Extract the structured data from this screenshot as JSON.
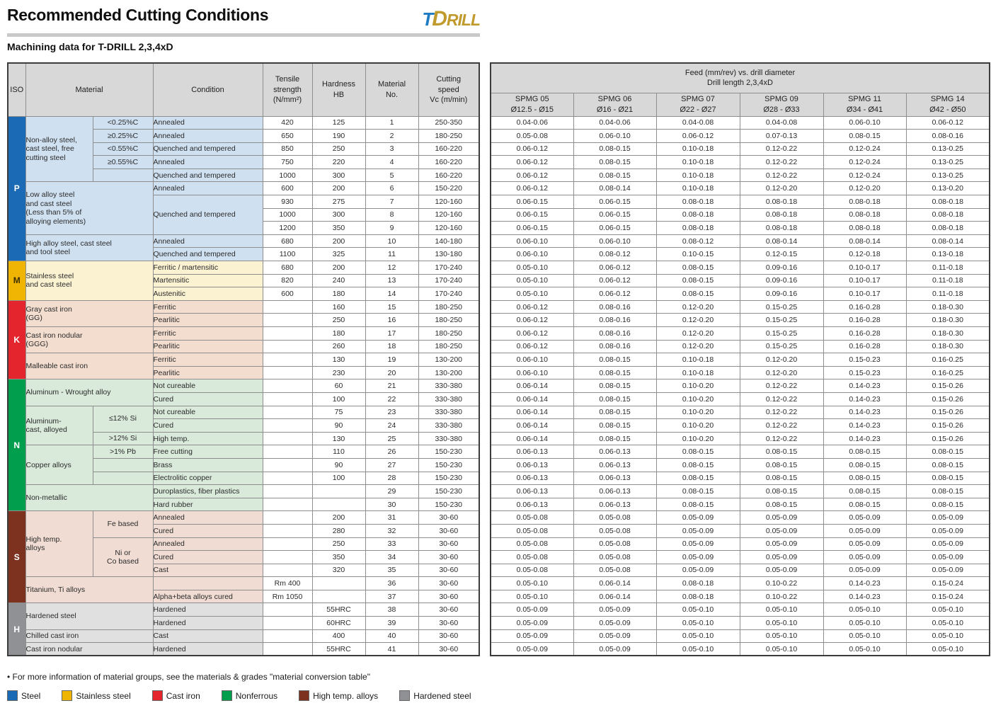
{
  "page": {
    "title": "Recommended Cutting Conditions",
    "subtitle": "Machining data for T-DRILL 2,3,4xD",
    "logo": {
      "t": "T",
      "d": "D",
      "rill": "RILL"
    },
    "footnote": "• For more information of material groups, see the materials & grades \"material conversion table\""
  },
  "legend": [
    {
      "label": "Steel",
      "color": "#1a6ab5"
    },
    {
      "label": "Stainless steel",
      "color": "#f0b502"
    },
    {
      "label": "Cast iron",
      "color": "#e4252e"
    },
    {
      "label": "Nonferrous",
      "color": "#019e4d"
    },
    {
      "label": "High temp. alloys",
      "color": "#7d3220"
    },
    {
      "label": "Hardened steel",
      "color": "#8f9194"
    }
  ],
  "row_groups": {
    "group_ends": [
      4,
      8,
      10,
      13,
      15,
      17,
      19,
      21,
      24,
      27,
      29,
      34,
      36,
      38,
      39,
      40
    ],
    "iso_ends": [
      10,
      13,
      19,
      29,
      36,
      40
    ]
  },
  "left_table": {
    "headers": {
      "iso": "ISO",
      "material": "Material",
      "condition": "Condition",
      "tensile": "Tensile\nstrength\n(N/mm²)",
      "hardness": "Hardness\nHB",
      "material_no": "Material\nNo.",
      "speed": "Cutting\nspeed\nVc (m/min)"
    },
    "iso_groups": [
      {
        "code": "P",
        "row": 0,
        "span": 11,
        "color": "#1a6ab5",
        "text": "#ffffff",
        "tint": "#cfe0f1"
      },
      {
        "code": "M",
        "row": 11,
        "span": 3,
        "color": "#f0b502",
        "text": "#3d3000",
        "tint": "#fbf2d2"
      },
      {
        "code": "K",
        "row": 14,
        "span": 6,
        "color": "#e4252e",
        "text": "#ffffff",
        "tint": "#f2ddcf"
      },
      {
        "code": "N",
        "row": 20,
        "span": 10,
        "color": "#019e4d",
        "text": "#ffffff",
        "tint": "#d9e9da"
      },
      {
        "code": "S",
        "row": 30,
        "span": 7,
        "color": "#7d3220",
        "text": "#ffffff",
        "tint": "#f0dcd3"
      },
      {
        "code": "H",
        "row": 37,
        "span": 4,
        "color": "#8f9194",
        "text": "#ffffff",
        "tint": "#e0e0e0"
      }
    ],
    "materials": [
      {
        "row": 0,
        "span": 5,
        "sub": true,
        "text": "Non-alloy steel,\ncast steel, free\ncutting steel"
      },
      {
        "row": 5,
        "span": 4,
        "sub": false,
        "text": "Low alloy steel\nand cast steel\n(Less than 5% of\nalloying elements)"
      },
      {
        "row": 9,
        "span": 2,
        "sub": false,
        "text": "High alloy steel, cast steel\nand tool steel"
      },
      {
        "row": 11,
        "span": 3,
        "sub": false,
        "text": "Stainless steel\nand cast steel"
      },
      {
        "row": 14,
        "span": 2,
        "sub": false,
        "text": "Gray cast iron\n(GG)"
      },
      {
        "row": 16,
        "span": 2,
        "sub": false,
        "text": "Cast iron nodular\n(GGG)"
      },
      {
        "row": 18,
        "span": 2,
        "sub": false,
        "text": "Malleable cast iron"
      },
      {
        "row": 20,
        "span": 2,
        "sub": false,
        "text": "Aluminum - Wrought alloy"
      },
      {
        "row": 22,
        "span": 3,
        "sub": true,
        "text": "Aluminum-\ncast, alloyed"
      },
      {
        "row": 25,
        "span": 3,
        "sub": true,
        "text": "Copper alloys"
      },
      {
        "row": 28,
        "span": 2,
        "sub": false,
        "text": "Non-metallic"
      },
      {
        "row": 30,
        "span": 5,
        "sub": true,
        "text": "High temp.\nalloys"
      },
      {
        "row": 35,
        "span": 2,
        "sub": false,
        "text": "Titanium, Ti alloys"
      },
      {
        "row": 37,
        "span": 2,
        "sub": false,
        "text": "Hardened steel"
      },
      {
        "row": 39,
        "span": 1,
        "sub": false,
        "text": "Chilled cast iron"
      },
      {
        "row": 40,
        "span": 1,
        "sub": false,
        "text": "Cast iron nodular"
      }
    ],
    "subs": [
      {
        "row": 0,
        "span": 1,
        "text": "<0.25%C"
      },
      {
        "row": 1,
        "span": 1,
        "text": "≥0.25%C"
      },
      {
        "row": 2,
        "span": 1,
        "text": "<0.55%C"
      },
      {
        "row": 3,
        "span": 1,
        "text": "≥0.55%C"
      },
      {
        "row": 4,
        "span": 1,
        "text": ""
      },
      {
        "row": 22,
        "span": 2,
        "text": "≤12% Si"
      },
      {
        "row": 24,
        "span": 1,
        "text": ">12% Si"
      },
      {
        "row": 25,
        "span": 1,
        "text": ">1% Pb"
      },
      {
        "row": 26,
        "span": 1,
        "text": ""
      },
      {
        "row": 27,
        "span": 1,
        "text": ""
      },
      {
        "row": 30,
        "span": 2,
        "text": "Fe based"
      },
      {
        "row": 32,
        "span": 3,
        "text": "Ni or\nCo based"
      }
    ],
    "conditions": [
      {
        "row": 0,
        "span": 1,
        "text": "Annealed"
      },
      {
        "row": 1,
        "span": 1,
        "text": "Annealed"
      },
      {
        "row": 2,
        "span": 1,
        "text": "Quenched and tempered"
      },
      {
        "row": 3,
        "span": 1,
        "text": "Annealed"
      },
      {
        "row": 4,
        "span": 1,
        "text": "Quenched and tempered"
      },
      {
        "row": 5,
        "span": 1,
        "text": "Annealed"
      },
      {
        "row": 6,
        "span": 3,
        "text": "Quenched and tempered"
      },
      {
        "row": 9,
        "span": 1,
        "text": "Annealed"
      },
      {
        "row": 10,
        "span": 1,
        "text": "Quenched and tempered"
      },
      {
        "row": 11,
        "span": 1,
        "text": "Ferritic / martensitic"
      },
      {
        "row": 12,
        "span": 1,
        "text": "Martensitic"
      },
      {
        "row": 13,
        "span": 1,
        "text": "Austenitic"
      },
      {
        "row": 14,
        "span": 1,
        "text": "Ferritic"
      },
      {
        "row": 15,
        "span": 1,
        "text": "Pearlitic"
      },
      {
        "row": 16,
        "span": 1,
        "text": "Ferritic"
      },
      {
        "row": 17,
        "span": 1,
        "text": "Pearlitic"
      },
      {
        "row": 18,
        "span": 1,
        "text": "Ferritic"
      },
      {
        "row": 19,
        "span": 1,
        "text": "Pearlitic"
      },
      {
        "row": 20,
        "span": 1,
        "text": "Not cureable"
      },
      {
        "row": 21,
        "span": 1,
        "text": "Cured"
      },
      {
        "row": 22,
        "span": 1,
        "text": "Not cureable"
      },
      {
        "row": 23,
        "span": 1,
        "text": "Cured"
      },
      {
        "row": 24,
        "span": 1,
        "text": "High temp."
      },
      {
        "row": 25,
        "span": 1,
        "text": "Free cutting"
      },
      {
        "row": 26,
        "span": 1,
        "text": "Brass"
      },
      {
        "row": 27,
        "span": 1,
        "text": "Electrolitic copper"
      },
      {
        "row": 28,
        "span": 1,
        "text": "Duroplastics, fiber plastics"
      },
      {
        "row": 29,
        "span": 1,
        "text": "Hard rubber"
      },
      {
        "row": 30,
        "span": 1,
        "text": "Annealed"
      },
      {
        "row": 31,
        "span": 1,
        "text": "Cured"
      },
      {
        "row": 32,
        "span": 1,
        "text": "Annealed"
      },
      {
        "row": 33,
        "span": 1,
        "text": "Cured"
      },
      {
        "row": 34,
        "span": 1,
        "text": "Cast"
      },
      {
        "row": 35,
        "span": 1,
        "text": ""
      },
      {
        "row": 36,
        "span": 1,
        "text": "Alpha+beta alloys cured"
      },
      {
        "row": 37,
        "span": 1,
        "text": "Hardened"
      },
      {
        "row": 38,
        "span": 1,
        "text": "Hardened"
      },
      {
        "row": 39,
        "span": 1,
        "text": "Cast"
      },
      {
        "row": 40,
        "span": 1,
        "text": "Hardened"
      }
    ],
    "rows": [
      [
        "420",
        "125",
        "1",
        "250-350"
      ],
      [
        "650",
        "190",
        "2",
        "180-250"
      ],
      [
        "850",
        "250",
        "3",
        "160-220"
      ],
      [
        "750",
        "220",
        "4",
        "160-220"
      ],
      [
        "1000",
        "300",
        "5",
        "160-220"
      ],
      [
        "600",
        "200",
        "6",
        "150-220"
      ],
      [
        "930",
        "275",
        "7",
        "120-160"
      ],
      [
        "1000",
        "300",
        "8",
        "120-160"
      ],
      [
        "1200",
        "350",
        "9",
        "120-160"
      ],
      [
        "680",
        "200",
        "10",
        "140-180"
      ],
      [
        "1100",
        "325",
        "11",
        "130-180"
      ],
      [
        "680",
        "200",
        "12",
        "170-240"
      ],
      [
        "820",
        "240",
        "13",
        "170-240"
      ],
      [
        "600",
        "180",
        "14",
        "170-240"
      ],
      [
        "",
        "160",
        "15",
        "180-250"
      ],
      [
        "",
        "250",
        "16",
        "180-250"
      ],
      [
        "",
        "180",
        "17",
        "180-250"
      ],
      [
        "",
        "260",
        "18",
        "180-250"
      ],
      [
        "",
        "130",
        "19",
        "130-200"
      ],
      [
        "",
        "230",
        "20",
        "130-200"
      ],
      [
        "",
        "60",
        "21",
        "330-380"
      ],
      [
        "",
        "100",
        "22",
        "330-380"
      ],
      [
        "",
        "75",
        "23",
        "330-380"
      ],
      [
        "",
        "90",
        "24",
        "330-380"
      ],
      [
        "",
        "130",
        "25",
        "330-380"
      ],
      [
        "",
        "110",
        "26",
        "150-230"
      ],
      [
        "",
        "90",
        "27",
        "150-230"
      ],
      [
        "",
        "100",
        "28",
        "150-230"
      ],
      [
        "",
        "",
        "29",
        "150-230"
      ],
      [
        "",
        "",
        "30",
        "150-230"
      ],
      [
        "",
        "200",
        "31",
        "30-60"
      ],
      [
        "",
        "280",
        "32",
        "30-60"
      ],
      [
        "",
        "250",
        "33",
        "30-60"
      ],
      [
        "",
        "350",
        "34",
        "30-60"
      ],
      [
        "",
        "320",
        "35",
        "30-60"
      ],
      [
        "Rm 400",
        "",
        "36",
        "30-60"
      ],
      [
        "Rm 1050",
        "",
        "37",
        "30-60"
      ],
      [
        "",
        "55HRC",
        "38",
        "30-60"
      ],
      [
        "",
        "60HRC",
        "39",
        "30-60"
      ],
      [
        "",
        "400",
        "40",
        "30-60"
      ],
      [
        "",
        "55HRC",
        "41",
        "30-60"
      ]
    ]
  },
  "right_table": {
    "title": "Feed (mm/rev) vs. drill diameter\nDrill length 2,3,4xD",
    "columns": [
      {
        "name": "SPMG 05",
        "range": "Ø12.5 - Ø15"
      },
      {
        "name": "SPMG 06",
        "range": "Ø16 - Ø21"
      },
      {
        "name": "SPMG 07",
        "range": "Ø22 - Ø27"
      },
      {
        "name": "SPMG 09",
        "range": "Ø28 - Ø33"
      },
      {
        "name": "SPMG 11",
        "range": "Ø34 - Ø41"
      },
      {
        "name": "SPMG 14",
        "range": "Ø42 - Ø50"
      }
    ],
    "rows": [
      [
        "0.04-0.06",
        "0.04-0.06",
        "0.04-0.08",
        "0.04-0.08",
        "0.06-0.10",
        "0.06-0.12"
      ],
      [
        "0.05-0.08",
        "0.06-0.10",
        "0.06-0.12",
        "0.07-0.13",
        "0.08-0.15",
        "0.08-0.16"
      ],
      [
        "0.06-0.12",
        "0.08-0.15",
        "0.10-0.18",
        "0.12-0.22",
        "0.12-0.24",
        "0.13-0.25"
      ],
      [
        "0.06-0.12",
        "0.08-0.15",
        "0.10-0.18",
        "0.12-0.22",
        "0.12-0.24",
        "0.13-0.25"
      ],
      [
        "0.06-0.12",
        "0.08-0.15",
        "0.10-0.18",
        "0.12-0.22",
        "0.12-0.24",
        "0.13-0.25"
      ],
      [
        "0.06-0.12",
        "0.08-0.14",
        "0.10-0.18",
        "0.12-0.20",
        "0.12-0.20",
        "0.13-0.20"
      ],
      [
        "0.06-0.15",
        "0.06-0.15",
        "0.08-0.18",
        "0.08-0.18",
        "0.08-0.18",
        "0.08-0.18"
      ],
      [
        "0.06-0.15",
        "0.06-0.15",
        "0.08-0.18",
        "0.08-0.18",
        "0.08-0.18",
        "0.08-0.18"
      ],
      [
        "0.06-0.15",
        "0.06-0.15",
        "0.08-0.18",
        "0.08-0.18",
        "0.08-0.18",
        "0.08-0.18"
      ],
      [
        "0.06-0.10",
        "0.06-0.10",
        "0.08-0.12",
        "0.08-0.14",
        "0.08-0.14",
        "0.08-0.14"
      ],
      [
        "0.06-0.10",
        "0.08-0.12",
        "0.10-0.15",
        "0.12-0.15",
        "0.12-0.18",
        "0.13-0.18"
      ],
      [
        "0.05-0.10",
        "0.06-0.12",
        "0.08-0.15",
        "0.09-0.16",
        "0.10-0.17",
        "0.11-0.18"
      ],
      [
        "0.05-0.10",
        "0.06-0.12",
        "0.08-0.15",
        "0.09-0.16",
        "0.10-0.17",
        "0.11-0.18"
      ],
      [
        "0.05-0.10",
        "0.06-0.12",
        "0.08-0.15",
        "0.09-0.16",
        "0.10-0.17",
        "0.11-0.18"
      ],
      [
        "0.06-0.12",
        "0.08-0.16",
        "0.12-0.20",
        "0.15-0.25",
        "0.16-0.28",
        "0.18-0.30"
      ],
      [
        "0.06-0.12",
        "0.08-0.16",
        "0.12-0.20",
        "0.15-0.25",
        "0.16-0.28",
        "0.18-0.30"
      ],
      [
        "0.06-0.12",
        "0.08-0.16",
        "0.12-0.20",
        "0.15-0.25",
        "0.16-0.28",
        "0.18-0.30"
      ],
      [
        "0.06-0.12",
        "0.08-0.16",
        "0.12-0.20",
        "0.15-0.25",
        "0.16-0.28",
        "0.18-0.30"
      ],
      [
        "0.06-0.10",
        "0.08-0.15",
        "0.10-0.18",
        "0.12-0.20",
        "0.15-0.23",
        "0.16-0.25"
      ],
      [
        "0.06-0.10",
        "0.08-0.15",
        "0.10-0.18",
        "0.12-0.20",
        "0.15-0.23",
        "0.16-0.25"
      ],
      [
        "0.06-0.14",
        "0.08-0.15",
        "0.10-0.20",
        "0.12-0.22",
        "0.14-0.23",
        "0.15-0.26"
      ],
      [
        "0.06-0.14",
        "0.08-0.15",
        "0.10-0.20",
        "0.12-0.22",
        "0.14-0.23",
        "0.15-0.26"
      ],
      [
        "0.06-0.14",
        "0.08-0.15",
        "0.10-0.20",
        "0.12-0.22",
        "0.14-0.23",
        "0.15-0.26"
      ],
      [
        "0.06-0.14",
        "0.08-0.15",
        "0.10-0.20",
        "0.12-0.22",
        "0.14-0.23",
        "0.15-0.26"
      ],
      [
        "0.06-0.14",
        "0.08-0.15",
        "0.10-0.20",
        "0.12-0.22",
        "0.14-0.23",
        "0.15-0.26"
      ],
      [
        "0.06-0.13",
        "0.06-0.13",
        "0.08-0.15",
        "0.08-0.15",
        "0.08-0.15",
        "0.08-0.15"
      ],
      [
        "0.06-0.13",
        "0.06-0.13",
        "0.08-0.15",
        "0.08-0.15",
        "0.08-0.15",
        "0.08-0.15"
      ],
      [
        "0.06-0.13",
        "0.06-0.13",
        "0.08-0.15",
        "0.08-0.15",
        "0.08-0.15",
        "0.08-0.15"
      ],
      [
        "0.06-0.13",
        "0.06-0.13",
        "0.08-0.15",
        "0.08-0.15",
        "0.08-0.15",
        "0.08-0.15"
      ],
      [
        "0.06-0.13",
        "0.06-0.13",
        "0.08-0.15",
        "0.08-0.15",
        "0.08-0.15",
        "0.08-0.15"
      ],
      [
        "0.05-0.08",
        "0.05-0.08",
        "0.05-0.09",
        "0.05-0.09",
        "0.05-0.09",
        "0.05-0.09"
      ],
      [
        "0.05-0.08",
        "0.05-0.08",
        "0.05-0.09",
        "0.05-0.09",
        "0.05-0.09",
        "0.05-0.09"
      ],
      [
        "0.05-0.08",
        "0.05-0.08",
        "0.05-0.09",
        "0.05-0.09",
        "0.05-0.09",
        "0.05-0.09"
      ],
      [
        "0.05-0.08",
        "0.05-0.08",
        "0.05-0.09",
        "0.05-0.09",
        "0.05-0.09",
        "0.05-0.09"
      ],
      [
        "0.05-0.08",
        "0.05-0.08",
        "0.05-0.09",
        "0.05-0.09",
        "0.05-0.09",
        "0.05-0.09"
      ],
      [
        "0.05-0.10",
        "0.06-0.14",
        "0.08-0.18",
        "0.10-0.22",
        "0.14-0.23",
        "0.15-0.24"
      ],
      [
        "0.05-0.10",
        "0.06-0.14",
        "0.08-0.18",
        "0.10-0.22",
        "0.14-0.23",
        "0.15-0.24"
      ],
      [
        "0.05-0.09",
        "0.05-0.09",
        "0.05-0.10",
        "0.05-0.10",
        "0.05-0.10",
        "0.05-0.10"
      ],
      [
        "0.05-0.09",
        "0.05-0.09",
        "0.05-0.10",
        "0.05-0.10",
        "0.05-0.10",
        "0.05-0.10"
      ],
      [
        "0.05-0.09",
        "0.05-0.09",
        "0.05-0.10",
        "0.05-0.10",
        "0.05-0.10",
        "0.05-0.10"
      ],
      [
        "0.05-0.09",
        "0.05-0.09",
        "0.05-0.10",
        "0.05-0.10",
        "0.05-0.10",
        "0.05-0.10"
      ]
    ]
  }
}
